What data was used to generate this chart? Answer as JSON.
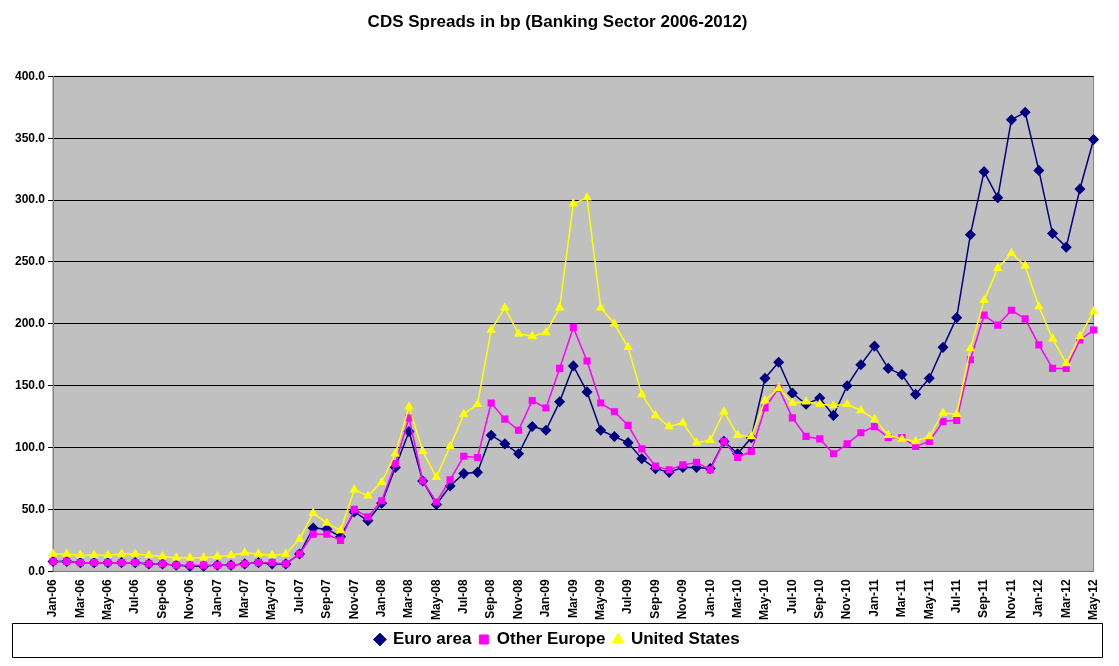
{
  "chart_data": {
    "type": "line",
    "title": "CDS Spreads in bp (Banking Sector 2006-2012)",
    "categories": [
      "Jan-06",
      null,
      "Mar-06",
      null,
      "May-06",
      null,
      "Jul-06",
      null,
      "Sep-06",
      null,
      "Nov-06",
      null,
      "Jan-07",
      null,
      "Mar-07",
      null,
      "May-07",
      null,
      "Jul-07",
      null,
      "Sep-07",
      null,
      "Nov-07",
      null,
      "Jan-08",
      null,
      "Mar-08",
      null,
      "May-08",
      null,
      "Jul-08",
      null,
      "Sep-08",
      null,
      "Nov-08",
      null,
      "Jan-09",
      null,
      "Mar-09",
      null,
      "May-09",
      null,
      "Jul-09",
      null,
      "Sep-09",
      null,
      "Nov-09",
      null,
      "Jan-10",
      null,
      "Mar-10",
      null,
      "May-10",
      null,
      "Jul-10",
      null,
      "Sep-10",
      null,
      "Nov-10",
      null,
      "Jan-11",
      null,
      "Mar-11",
      null,
      "May-11",
      null,
      "Jul-11",
      null,
      "Sep-11",
      null,
      "Nov-11",
      null,
      "Jan-12",
      null,
      "Mar-12",
      null,
      "May-12"
    ],
    "series": [
      {
        "name": "Euro area",
        "color": "#000080",
        "marker": "diamond",
        "values": [
          8,
          8,
          7,
          7,
          7,
          7,
          7,
          6,
          6,
          5,
          4,
          4,
          5,
          5,
          6,
          7,
          6,
          6,
          14,
          35,
          34,
          28,
          48,
          41,
          55,
          84,
          113,
          73,
          54,
          69,
          79,
          80,
          110,
          103,
          95,
          117,
          114,
          137,
          166,
          145,
          114,
          109,
          104,
          91,
          83,
          80,
          84,
          84,
          83,
          105,
          95,
          108,
          156,
          169,
          144,
          135,
          140,
          126,
          150,
          167,
          182,
          164,
          159,
          143,
          156,
          181,
          205,
          272,
          323,
          302,
          365,
          371,
          324,
          273,
          262,
          309,
          349
        ]
      },
      {
        "name": "Other Europe",
        "color": "#ff00ff",
        "marker": "square",
        "values": [
          8,
          8,
          7,
          7,
          7,
          7,
          7,
          6,
          6,
          5,
          5,
          5,
          5,
          5,
          6,
          7,
          7,
          6,
          14,
          30,
          30,
          25,
          50,
          44,
          57,
          87,
          124,
          73,
          56,
          74,
          93,
          92,
          136,
          123,
          114,
          138,
          132,
          164,
          197,
          170,
          136,
          129,
          118,
          99,
          85,
          82,
          86,
          88,
          82,
          105,
          92,
          97,
          132,
          148,
          124,
          109,
          107,
          95,
          103,
          112,
          117,
          108,
          108,
          101,
          105,
          121,
          122,
          171,
          207,
          199,
          211,
          204,
          183,
          164,
          164,
          187,
          195
        ]
      },
      {
        "name": "United States",
        "color": "#ffff00",
        "marker": "triangle",
        "values": [
          14,
          14,
          13,
          13,
          13,
          14,
          14,
          13,
          12,
          11,
          11,
          11,
          12,
          13,
          15,
          14,
          13,
          14,
          26,
          47,
          39,
          33,
          66,
          61,
          72,
          95,
          133,
          97,
          76,
          101,
          127,
          135,
          195,
          213,
          192,
          190,
          193,
          213,
          297,
          302,
          213,
          200,
          181,
          143,
          126,
          117,
          120,
          104,
          106,
          129,
          110,
          109,
          138,
          148,
          136,
          137,
          135,
          134,
          135,
          130,
          123,
          110,
          107,
          105,
          109,
          128,
          127,
          180,
          219,
          245,
          257,
          247,
          214,
          188,
          168,
          190,
          210
        ]
      }
    ],
    "ylim": [
      0,
      400
    ],
    "yticks": [
      {
        "value": 0,
        "label": "0.0"
      },
      {
        "value": 50,
        "label": "50.0"
      },
      {
        "value": 100,
        "label": "100.0"
      },
      {
        "value": 150,
        "label": "150.0"
      },
      {
        "value": 200,
        "label": "200.0"
      },
      {
        "value": 250,
        "label": "250.0"
      },
      {
        "value": 300,
        "label": "300.0"
      },
      {
        "value": 350,
        "label": "350.0"
      },
      {
        "value": 400,
        "label": "400.0"
      }
    ],
    "grid": "y",
    "legend": "bottom",
    "line_style": "solid"
  }
}
